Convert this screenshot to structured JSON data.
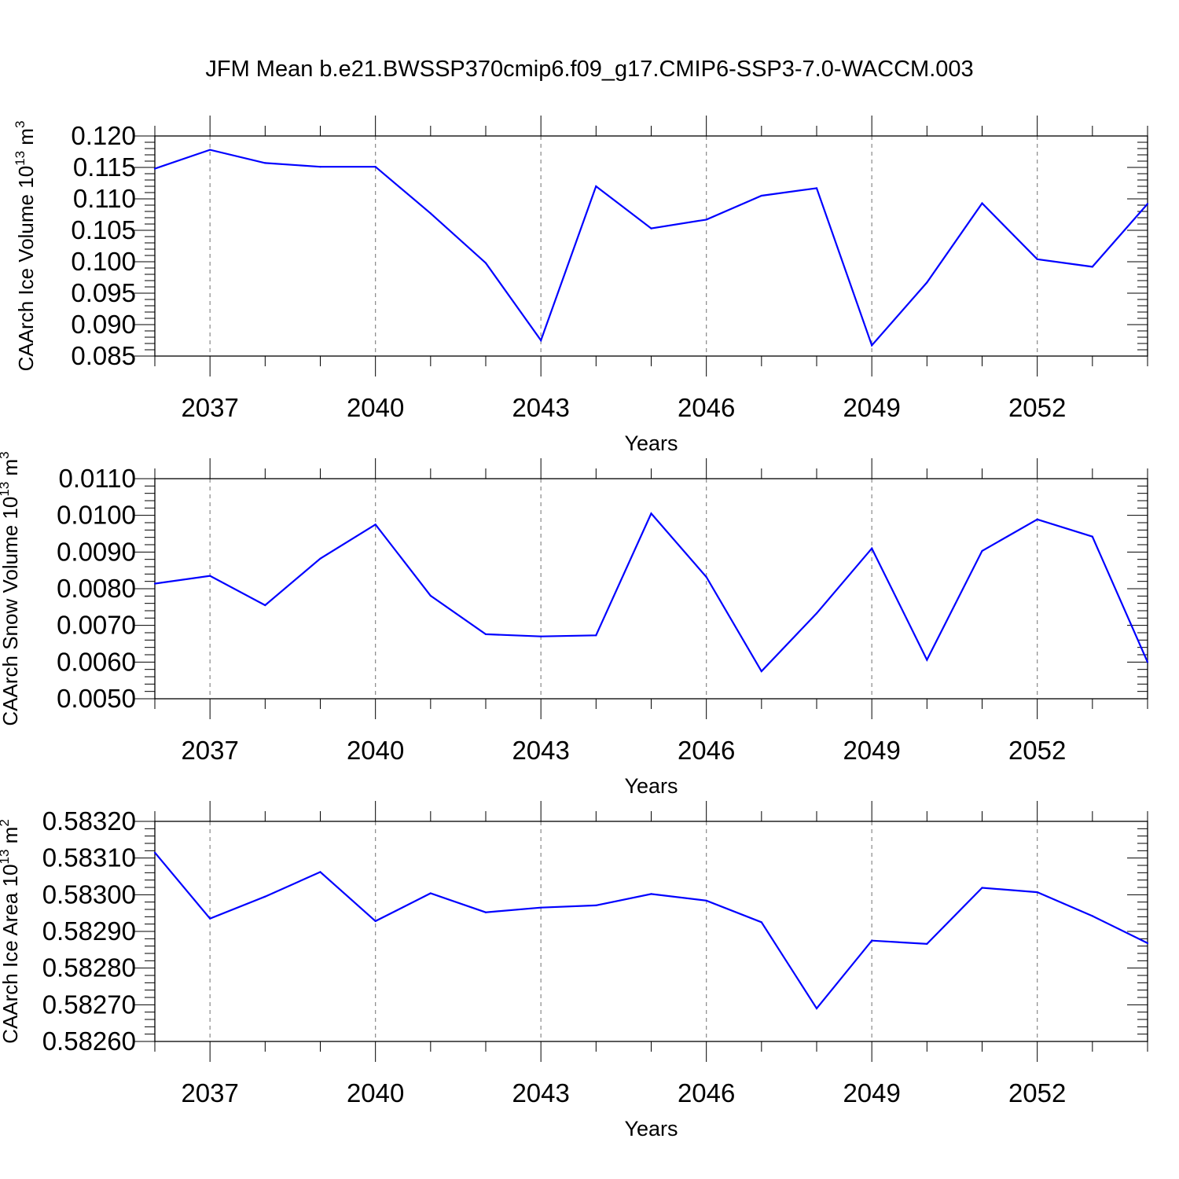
{
  "title": "JFM Mean b.e21.BWSSP370cmip6.f09_g17.CMIP6-SSP3-7.0-WACCM.003",
  "chart_data": [
    {
      "type": "line",
      "xlabel": "Years",
      "ylabel": "CAArch Ice Volume 10",
      "ylabel_exp": "13",
      "ylabel_unit": " m",
      "ylabel_unit_exp": "3",
      "x": [
        2036,
        2037,
        2038,
        2039,
        2040,
        2041,
        2042,
        2043,
        2044,
        2045,
        2046,
        2047,
        2048,
        2049,
        2050,
        2051,
        2052,
        2053,
        2054
      ],
      "values": [
        0.1148,
        0.1178,
        0.1157,
        0.1151,
        0.1151,
        0.1077,
        0.0998,
        0.0875,
        0.112,
        0.1053,
        0.1067,
        0.1105,
        0.1117,
        0.0867,
        0.0967,
        0.1093,
        0.1004,
        0.0992,
        0.1092
      ],
      "xlim": [
        2036,
        2054
      ],
      "ylim": [
        0.085,
        0.12
      ],
      "xticks": [
        2037,
        2040,
        2043,
        2046,
        2049,
        2052
      ],
      "xtick_labels": [
        "2037",
        "2040",
        "2043",
        "2046",
        "2049",
        "2052"
      ],
      "yticks": [
        0.085,
        0.09,
        0.095,
        0.1,
        0.105,
        0.11,
        0.115,
        0.12
      ],
      "ytick_labels": [
        "0.085",
        "0.090",
        "0.095",
        "0.100",
        "0.105",
        "0.110",
        "0.115",
        "0.120"
      ],
      "line_color": "#0000ff",
      "grid": "vertical dashed at major x ticks"
    },
    {
      "type": "line",
      "xlabel": "Years",
      "ylabel": "CAArch Snow Volume 10",
      "ylabel_exp": "13",
      "ylabel_unit": " m",
      "ylabel_unit_exp": "3",
      "x": [
        2036,
        2037,
        2038,
        2039,
        2040,
        2041,
        2042,
        2043,
        2044,
        2045,
        2046,
        2047,
        2048,
        2049,
        2050,
        2051,
        2052,
        2053,
        2054
      ],
      "values": [
        0.00814,
        0.00835,
        0.00755,
        0.00882,
        0.00975,
        0.00781,
        0.00676,
        0.0067,
        0.00673,
        0.01005,
        0.00832,
        0.00575,
        0.00733,
        0.0091,
        0.00606,
        0.00903,
        0.00989,
        0.00942,
        0.006
      ],
      "xlim": [
        2036,
        2054
      ],
      "ylim": [
        0.005,
        0.011
      ],
      "xticks": [
        2037,
        2040,
        2043,
        2046,
        2049,
        2052
      ],
      "xtick_labels": [
        "2037",
        "2040",
        "2043",
        "2046",
        "2049",
        "2052"
      ],
      "yticks": [
        0.005,
        0.006,
        0.007,
        0.008,
        0.009,
        0.01,
        0.011
      ],
      "ytick_labels": [
        "0.0050",
        "0.0060",
        "0.0070",
        "0.0080",
        "0.0090",
        "0.0100",
        "0.0110"
      ],
      "line_color": "#0000ff",
      "grid": "vertical dashed at major x ticks"
    },
    {
      "type": "line",
      "xlabel": "Years",
      "ylabel": "CAArch Ice Area 10",
      "ylabel_exp": "13",
      "ylabel_unit": " m",
      "ylabel_unit_exp": "2",
      "x": [
        2036,
        2037,
        2038,
        2039,
        2040,
        2041,
        2042,
        2043,
        2044,
        2045,
        2046,
        2047,
        2048,
        2049,
        2050,
        2051,
        2052,
        2053,
        2054
      ],
      "values": [
        0.583115,
        0.582935,
        0.582995,
        0.583062,
        0.582928,
        0.583004,
        0.582952,
        0.582965,
        0.582971,
        0.583002,
        0.582984,
        0.582925,
        0.58269,
        0.582875,
        0.582866,
        0.583019,
        0.583007,
        0.582942,
        0.582868
      ],
      "xlim": [
        2036,
        2054
      ],
      "ylim": [
        0.5826,
        0.5832
      ],
      "xticks": [
        2037,
        2040,
        2043,
        2046,
        2049,
        2052
      ],
      "xtick_labels": [
        "2037",
        "2040",
        "2043",
        "2046",
        "2049",
        "2052"
      ],
      "yticks": [
        0.5826,
        0.5827,
        0.5828,
        0.5829,
        0.583,
        0.5831,
        0.5832
      ],
      "ytick_labels": [
        "0.58260",
        "0.58270",
        "0.58280",
        "0.58290",
        "0.58300",
        "0.58310",
        "0.58320"
      ],
      "line_color": "#0000ff",
      "grid": "vertical dashed at major x ticks"
    }
  ]
}
